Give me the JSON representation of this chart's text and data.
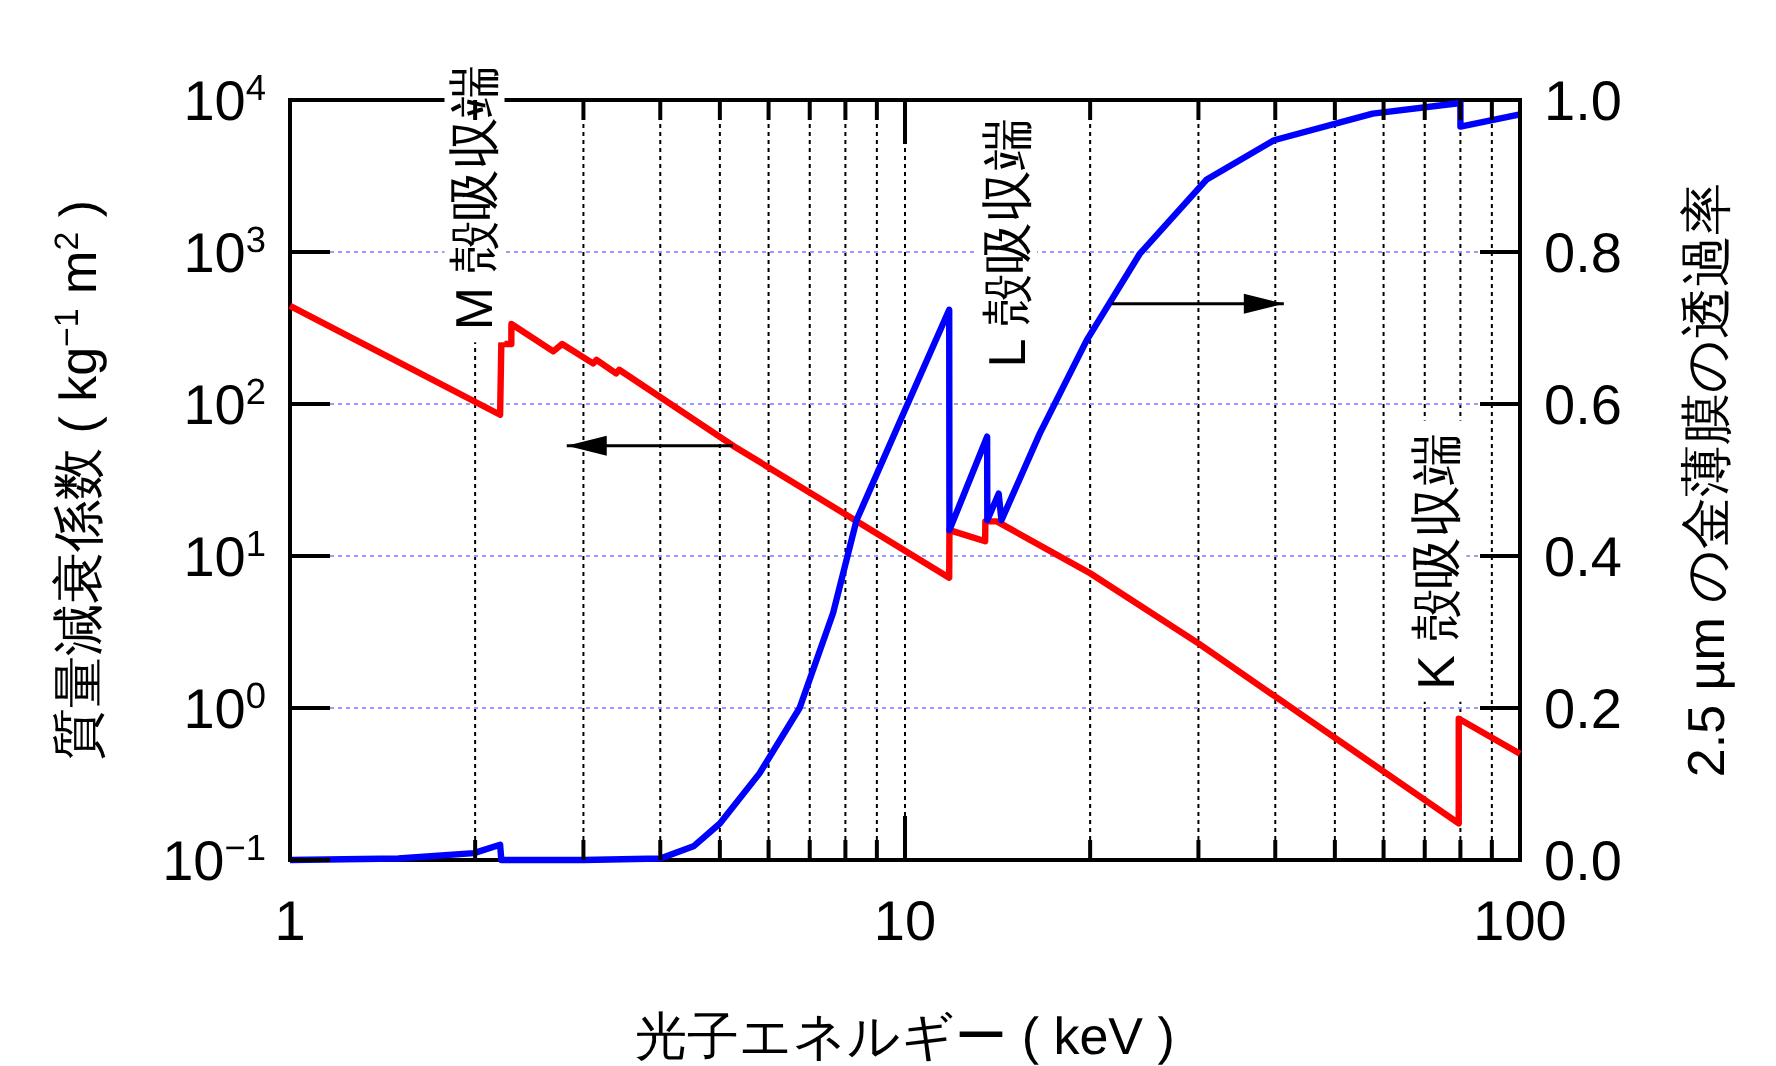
{
  "chart_data": {
    "type": "line",
    "xlabel": "光子エネルギー ( keV )",
    "ylabel": "質量減衰係数 ( kg$^{−1}$ m$^{2}$ )",
    "y2label": "2.5 µm の金薄膜の透過率",
    "log": "xy",
    "grid": true,
    "line_style": "solid",
    "xlim": [
      1,
      100
    ],
    "ylim": [
      0.1,
      10000
    ],
    "y2lim": [
      0,
      1
    ],
    "xticks": [
      1,
      {
        "value": 2,
        "label": null
      },
      {
        "value": 3,
        "label": null
      },
      {
        "value": 4,
        "label": null
      },
      {
        "value": 5,
        "label": null
      },
      {
        "value": 6,
        "label": null
      },
      {
        "value": 7,
        "label": null
      },
      {
        "value": 8,
        "label": null
      },
      {
        "value": 9,
        "label": null
      },
      10,
      {
        "value": 20,
        "label": null
      },
      {
        "value": 30,
        "label": null
      },
      {
        "value": 40,
        "label": null
      },
      {
        "value": 50,
        "label": null
      },
      {
        "value": 60,
        "label": null
      },
      {
        "value": 70,
        "label": null
      },
      {
        "value": 80,
        "label": null
      },
      {
        "value": 90,
        "label": null
      },
      100
    ],
    "yticks": [
      {
        "value": 0.1,
        "label": "10$^{−1}$"
      },
      {
        "value": 1,
        "label": "10$^{0}$"
      },
      {
        "value": 10,
        "label": "10$^{1}$"
      },
      {
        "value": 100,
        "label": "10$^{2}$"
      },
      {
        "value": 1000,
        "label": "10$^{3}$"
      },
      {
        "value": 10000,
        "label": "10$^{4}$"
      }
    ],
    "y2ticks": [
      {
        "value": 0,
        "label": "0.0"
      },
      0.2,
      0.4,
      0.6,
      0.8,
      {
        "value": 1,
        "label": "1.0"
      }
    ],
    "series": [
      {
        "color": "#ff0000",
        "x": [
          1,
          2.196,
          2.206,
          2.29,
          2.291,
          2.68,
          2.77,
          3.11,
          3.15,
          3.39,
          3.43,
          5.26,
          11.8,
          11.81,
          13.5,
          13.51,
          14.1,
          20,
          30,
          79.5,
          79.51,
          100
        ],
        "values": [
          442,
          85,
          248,
          248,
          336,
          222,
          248,
          185,
          195,
          159,
          168,
          53,
          7.2,
          14.8,
          12.5,
          16.9,
          16.9,
          7.7,
          2.66,
          0.174,
          0.85,
          0.5
        ]
      },
      {
        "color": "#0000ff",
        "axis": "y2",
        "x": [
          1,
          1.5,
          1.99,
          2.196,
          2.206,
          3,
          4,
          4.53,
          5,
          5.8,
          6.74,
          7.64,
          8.34,
          10.06,
          11.8,
          11.81,
          13.6,
          13.61,
          14.2,
          14.35,
          16.56,
          19.75,
          24.1,
          30.9,
          39.8,
          57.6,
          80,
          80.01,
          100
        ],
        "values": [
          0,
          0.002,
          0.009,
          0.02,
          0,
          0,
          0.002,
          0.018,
          0.048,
          0.114,
          0.2,
          0.325,
          0.447,
          0.597,
          0.724,
          0.434,
          0.557,
          0.447,
          0.482,
          0.447,
          0.561,
          0.684,
          0.798,
          0.895,
          0.947,
          0.982,
          0.996,
          0.965,
          0.981
        ]
      }
    ],
    "annotations": [
      "M 殻吸収端",
      "L 殻吸収端",
      "K 殻吸収端"
    ]
  }
}
